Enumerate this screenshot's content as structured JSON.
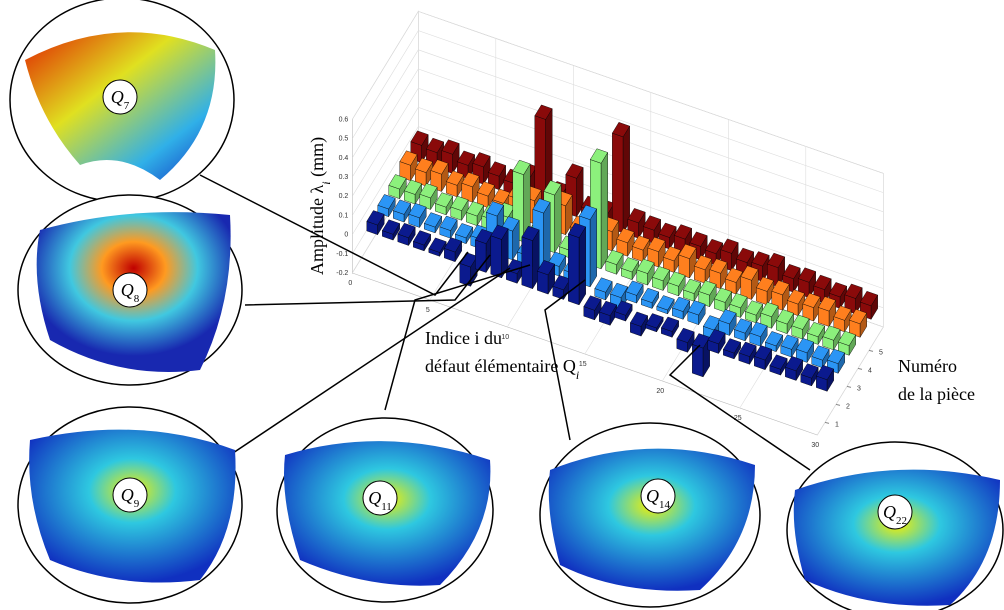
{
  "chart_data": {
    "type": "bar3d",
    "ylabel": [
      "Amplitude λ",
      "i",
      " (mm)"
    ],
    "xlabel": [
      "Indice i du",
      "défaut élémentaire Q",
      "i"
    ],
    "zlabel": [
      "Numéro",
      "de la pièce"
    ],
    "ylim": [
      -0.2,
      0.6
    ],
    "yticks": [
      -0.2,
      -0.1,
      0,
      0.1,
      0.2,
      0.3,
      0.4,
      0.5,
      0.6
    ],
    "xlim": [
      0,
      30
    ],
    "xticks": [
      0,
      5,
      10,
      15,
      20,
      25,
      30
    ],
    "zticks": [
      1,
      2,
      3,
      4,
      5
    ],
    "grid": true,
    "categories": [
      1,
      2,
      3,
      4,
      5,
      6,
      7,
      8,
      9,
      10,
      11,
      12,
      13,
      14,
      15,
      16,
      17,
      18,
      19,
      20,
      21,
      22,
      23,
      24,
      25,
      26,
      27,
      28,
      29,
      30
    ],
    "series": [
      {
        "name": "1",
        "color": "#0b1a8e",
        "values": [
          0.05,
          0.03,
          0.04,
          0.03,
          0.02,
          0.05,
          -0.1,
          0.15,
          0.2,
          0.05,
          0.25,
          0.1,
          0.05,
          0.35,
          -0.05,
          -0.05,
          0.03,
          -0.05,
          0.02,
          0.03,
          -0.05,
          -0.15,
          0.05,
          0.03,
          0.04,
          0.05,
          0.03,
          0.05,
          0.04,
          0.06
        ]
      },
      {
        "name": "2",
        "color": "#2b95f5",
        "values": [
          0.04,
          0.04,
          0.05,
          0.03,
          0.04,
          0.03,
          0.05,
          0.2,
          0.15,
          0.05,
          0.3,
          0.05,
          0.04,
          0.35,
          -0.04,
          -0.06,
          0.04,
          0.03,
          0.02,
          0.04,
          0.05,
          -0.05,
          0.06,
          0.04,
          0.05,
          0.03,
          0.04,
          0.05,
          0.04,
          0.05
        ]
      },
      {
        "name": "3",
        "color": "#8cf07c",
        "values": [
          0.05,
          0.05,
          0.06,
          0.04,
          0.05,
          0.05,
          0.06,
          0.1,
          0.35,
          0.06,
          0.3,
          0.04,
          0.05,
          0.55,
          0.05,
          0.04,
          0.06,
          0.05,
          0.05,
          0.04,
          0.06,
          0.05,
          0.05,
          0.04,
          0.06,
          0.05,
          0.05,
          0.04,
          0.05,
          0.05
        ]
      },
      {
        "name": "4",
        "color": "#ff7f1e",
        "values": [
          0.08,
          0.07,
          0.09,
          0.06,
          0.08,
          0.06,
          0.05,
          0.1,
          0.12,
          0.06,
          0.15,
          0.05,
          0.06,
          0.1,
          0.07,
          0.06,
          0.08,
          0.06,
          0.1,
          0.07,
          0.08,
          0.06,
          0.1,
          0.07,
          0.08,
          0.06,
          0.07,
          0.08,
          0.06,
          0.07
        ]
      },
      {
        "name": "5",
        "color": "#8a0a0a",
        "values": [
          0.09,
          0.08,
          0.1,
          0.07,
          0.09,
          0.07,
          0.06,
          0.12,
          0.45,
          0.08,
          0.2,
          0.06,
          0.07,
          0.5,
          0.08,
          0.07,
          0.06,
          0.08,
          0.07,
          0.06,
          0.09,
          0.07,
          0.08,
          0.1,
          0.07,
          0.08,
          0.07,
          0.06,
          0.08,
          0.07
        ]
      }
    ]
  },
  "callouts": [
    {
      "label": "Q",
      "subscript": "7"
    },
    {
      "label": "Q",
      "subscript": "8"
    },
    {
      "label": "Q",
      "subscript": "9"
    },
    {
      "label": "Q",
      "subscript": "11"
    },
    {
      "label": "Q",
      "subscript": "14"
    },
    {
      "label": "Q",
      "subscript": "22"
    }
  ]
}
